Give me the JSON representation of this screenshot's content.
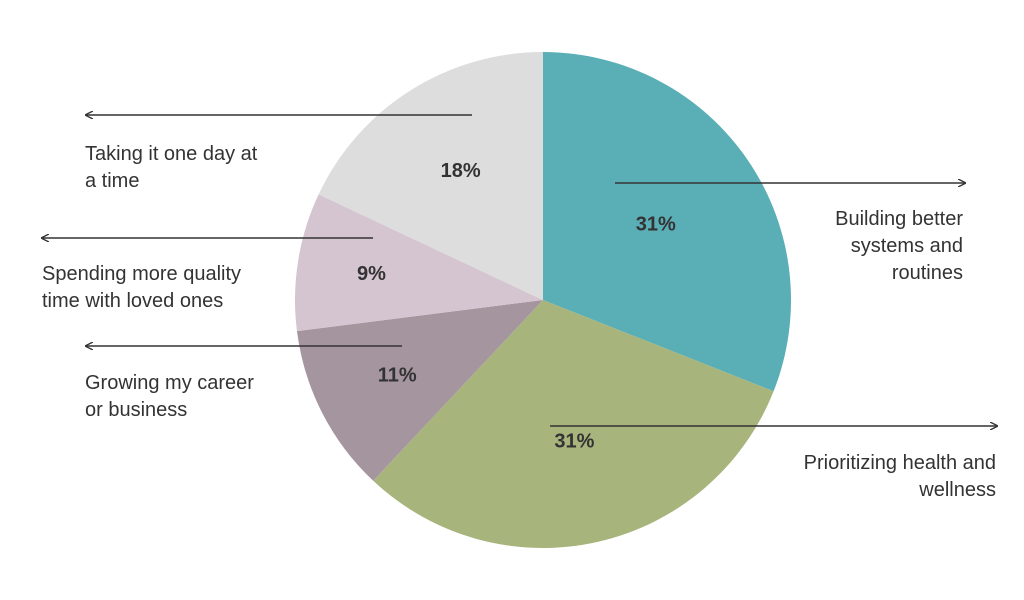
{
  "chart_data": {
    "type": "pie",
    "title": "",
    "start_angle_deg": 0,
    "direction": "clockwise",
    "slices": [
      {
        "label_lines": [
          "Building better",
          "systems and",
          "routines"
        ],
        "value": 31,
        "value_label": "31%",
        "color": "#5aaeb6",
        "label_side": "right"
      },
      {
        "label_lines": [
          "Prioritizing health and",
          "wellness"
        ],
        "value": 31,
        "value_label": "31%",
        "color": "#a7b47c",
        "label_side": "right"
      },
      {
        "label_lines": [
          "Growing my career",
          "or business"
        ],
        "value": 11,
        "value_label": "11%",
        "color": "#a4959e",
        "label_side": "left"
      },
      {
        "label_lines": [
          "Spending more quality",
          "time with loved ones"
        ],
        "value": 9,
        "value_label": "9%",
        "color": "#d5c5d1",
        "label_side": "left"
      },
      {
        "label_lines": [
          "Taking it one day at",
          "a time"
        ],
        "value": 18,
        "value_label": "18%",
        "color": "#dddddd",
        "label_side": "left"
      }
    ],
    "legend": "none",
    "grid": false
  }
}
